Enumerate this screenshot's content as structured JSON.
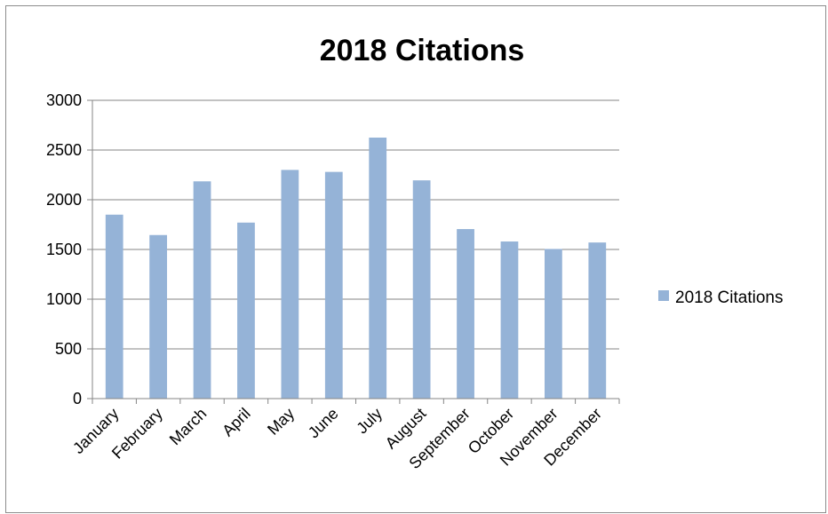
{
  "chart_data": {
    "type": "bar",
    "title": "2018 Citations",
    "xlabel": "",
    "ylabel": "",
    "categories": [
      "January",
      "February",
      "March",
      "April",
      "May",
      "June",
      "July",
      "August",
      "September",
      "October",
      "November",
      "December"
    ],
    "series": [
      {
        "name": "2018 Citations",
        "values": [
          1850,
          1645,
          2185,
          1770,
          2300,
          2280,
          2625,
          2195,
          1705,
          1580,
          1505,
          1570
        ],
        "color": "#95B3D7"
      }
    ],
    "ylim": [
      0,
      3000
    ],
    "yticks": [
      "0",
      "500",
      "1000",
      "1500",
      "2000",
      "2500",
      "3000"
    ],
    "grid": true,
    "legend_position": "right"
  }
}
